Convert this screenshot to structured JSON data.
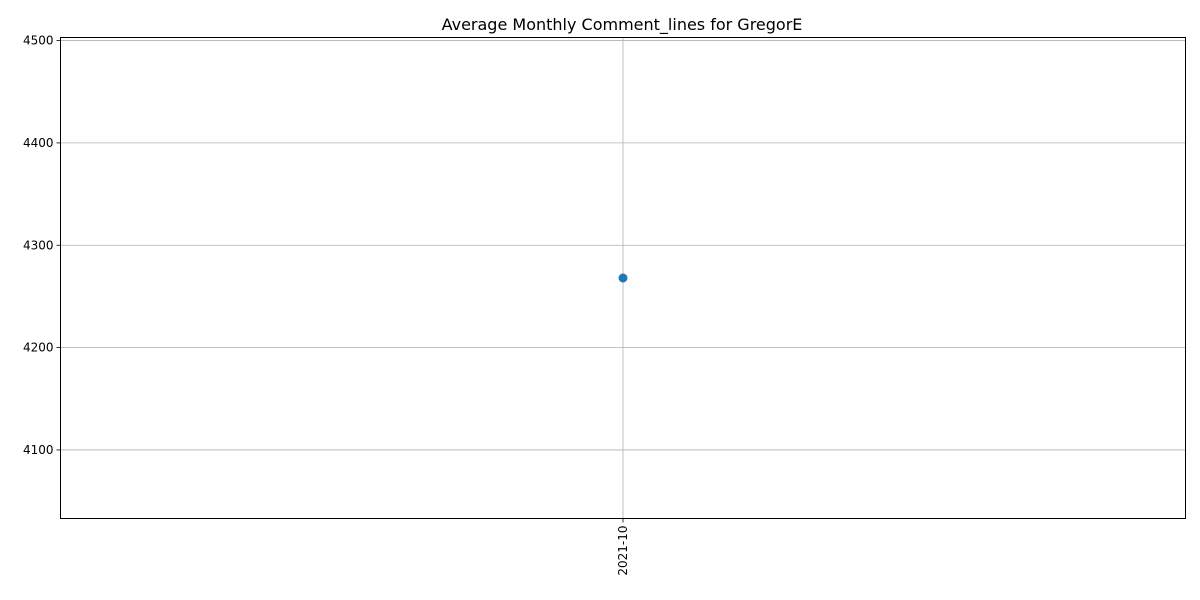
{
  "chart_data": {
    "type": "line",
    "title": "Average Monthly Comment_lines for GregorE",
    "xlabel": "",
    "ylabel": "",
    "categories": [
      "2021-10"
    ],
    "series": [
      {
        "values": [
          4268
        ],
        "color": "#1f77b4",
        "marker": "circle"
      }
    ],
    "ylim": [
      4033,
      4503
    ],
    "yticks": [
      4100,
      4200,
      4300,
      4400,
      4500
    ],
    "grid": true,
    "legend": "none"
  }
}
